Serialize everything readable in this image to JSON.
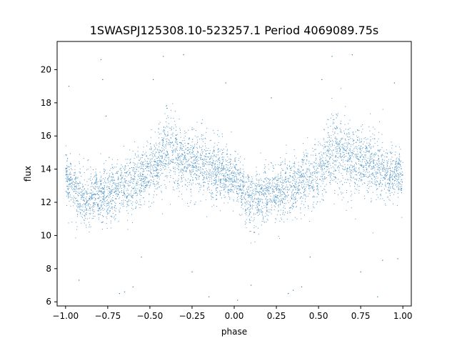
{
  "chart_data": {
    "type": "scatter",
    "title": "1SWASPJ125308.10-523257.1 Period 4069089.75s",
    "xlabel": "phase",
    "ylabel": "flux",
    "xlim": [
      -1.05,
      1.05
    ],
    "ylim": [
      5.75,
      21.7
    ],
    "xticks": [
      -1.0,
      -0.75,
      -0.5,
      -0.25,
      0.0,
      0.25,
      0.5,
      0.75,
      1.0
    ],
    "xtick_labels": [
      "−1.00",
      "−0.75",
      "−0.50",
      "−0.25",
      "0.00",
      "0.25",
      "0.50",
      "0.75",
      "1.00"
    ],
    "yticks": [
      6,
      8,
      10,
      12,
      14,
      16,
      18,
      20
    ],
    "ytick_labels": [
      "6",
      "8",
      "10",
      "12",
      "14",
      "16",
      "18",
      "20"
    ],
    "grid": false,
    "legend": "none",
    "point_color": "#1f77b4",
    "trend": {
      "phase": [
        0.0,
        0.1,
        0.2,
        0.3,
        0.4,
        0.5,
        0.6,
        0.7,
        0.8,
        0.9,
        1.0
      ],
      "flux_center": [
        13.5,
        12.2,
        12.5,
        12.7,
        13.3,
        13.8,
        15.3,
        14.4,
        14.3,
        13.8,
        13.5
      ],
      "flux_spread": [
        1.2,
        1.5,
        1.4,
        1.5,
        1.5,
        1.6,
        2.0,
        1.7,
        1.8,
        1.4,
        1.2
      ]
    },
    "outliers": [
      [
        -0.98,
        19.0
      ],
      [
        -0.92,
        7.3
      ],
      [
        -0.79,
        20.6
      ],
      [
        -0.78,
        19.4
      ],
      [
        -0.76,
        17.2
      ],
      [
        -0.68,
        6.5
      ],
      [
        -0.65,
        6.6
      ],
      [
        -0.6,
        6.9
      ],
      [
        -0.55,
        8.7
      ],
      [
        -0.48,
        19.4
      ],
      [
        -0.42,
        20.8
      ],
      [
        -0.3,
        20.9
      ],
      [
        -0.25,
        7.8
      ],
      [
        -0.15,
        6.3
      ],
      [
        -0.05,
        19.2
      ],
      [
        0.02,
        6.1
      ],
      [
        0.1,
        7.0
      ],
      [
        0.22,
        18.3
      ],
      [
        0.32,
        6.5
      ],
      [
        0.35,
        6.7
      ],
      [
        0.4,
        6.9
      ],
      [
        0.45,
        8.7
      ],
      [
        0.52,
        19.4
      ],
      [
        0.58,
        20.8
      ],
      [
        0.7,
        20.9
      ],
      [
        0.75,
        7.8
      ],
      [
        0.85,
        6.3
      ],
      [
        0.88,
        8.5
      ],
      [
        0.95,
        19.2
      ],
      [
        0.97,
        8.6
      ]
    ]
  }
}
